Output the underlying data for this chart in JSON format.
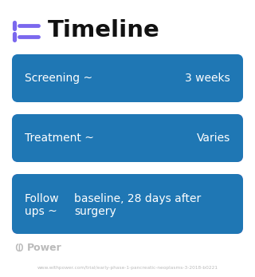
{
  "title": "Timeline",
  "title_icon_color": "#7B68EE",
  "bg_color": "#ffffff",
  "boxes": [
    {
      "label": "Screening ~",
      "value": "3 weeks",
      "color_left": "#4d9fff",
      "color_right": "#4d9fff",
      "label_ha": "left",
      "value_ha": "right",
      "label_multiline": false,
      "value_multiline": false
    },
    {
      "label": "Treatment ~",
      "value": "Varies",
      "color_left": "#6080ee",
      "color_right": "#9b6fcc",
      "label_ha": "left",
      "value_ha": "right",
      "label_multiline": false,
      "value_multiline": false
    },
    {
      "label": "Follow\nups ~",
      "value": "baseline, 28 days after\nsurgery",
      "color_left": "#a066cc",
      "color_right": "#c080dd",
      "label_ha": "left",
      "value_ha": "left",
      "label_multiline": true,
      "value_multiline": true
    }
  ],
  "footer_text": "www.withpower.com/trial/early-phase-1-pancreatic-neoplasms-3-2018-b0221",
  "power_logo_color": "#bbbbbb",
  "font_color_dark": "#111111"
}
